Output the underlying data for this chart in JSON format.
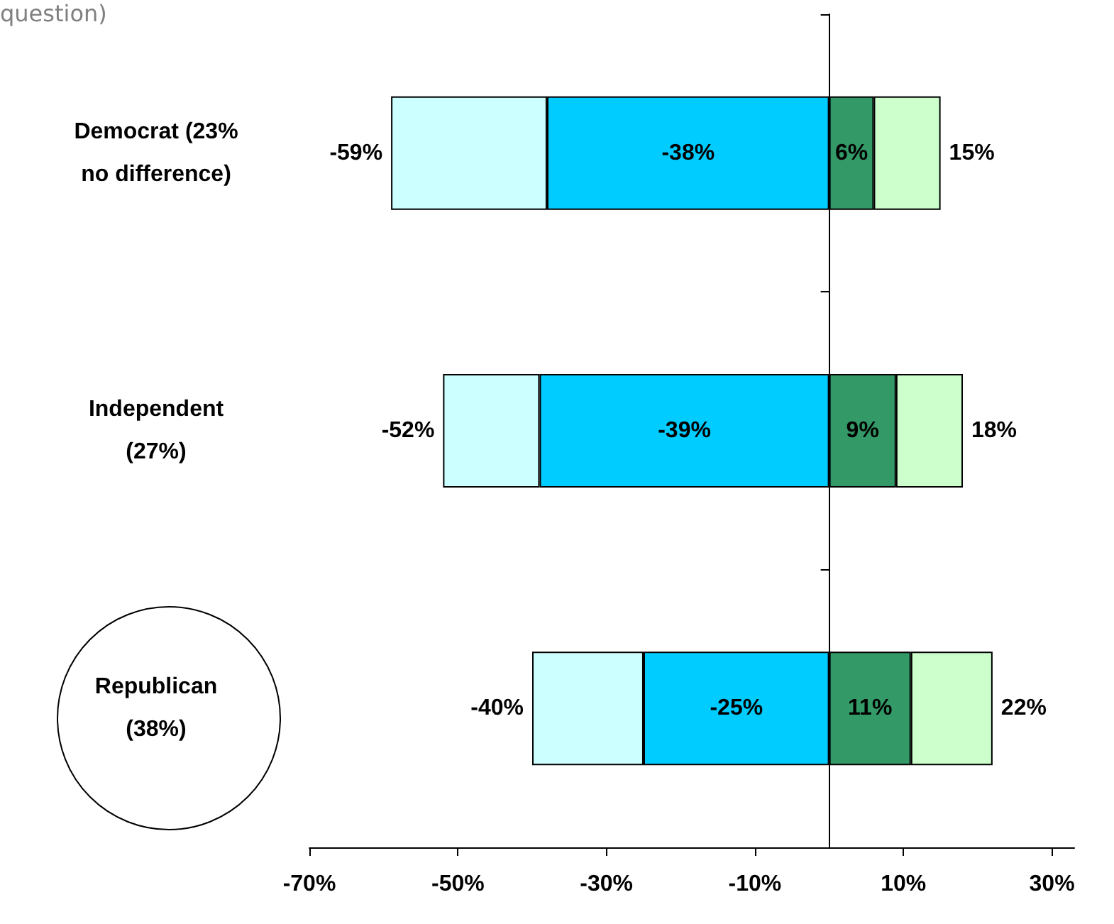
{
  "chart_data": {
    "type": "bar",
    "orientation": "horizontal",
    "stacked": true,
    "grid": false,
    "totals": [
      [
        "-59%",
        "15%"
      ],
      [
        "-52%",
        "18%"
      ],
      [
        "-40%",
        "22%"
      ]
    ],
    "annotations": [
      "question)"
    ],
    "categories": [
      "Democrat (23%\nno difference)",
      "Independent\n(27%)",
      "Republican\n(38%)"
    ],
    "xlim": [
      -70,
      33
    ],
    "xticks": [
      {
        "value": -70,
        "label": "-70%"
      },
      {
        "value": -50,
        "label": "-50%"
      },
      {
        "value": -30,
        "label": "-30%"
      },
      {
        "value": -10,
        "label": "-10%"
      },
      {
        "value": 10,
        "label": "10%"
      },
      {
        "value": 30,
        "label": "30%"
      }
    ],
    "series": [
      {
        "color": "#00ccff",
        "values": [
          -38,
          -39,
          -25
        ],
        "value_labels": [
          "-38%",
          "-39%",
          "-25%"
        ]
      },
      {
        "color": "#ccffff",
        "values": [
          -21,
          -13,
          -15
        ]
      },
      {
        "color": "#339966",
        "values": [
          6,
          9,
          11
        ],
        "value_labels": [
          "6%",
          "9%",
          "11%"
        ]
      },
      {
        "color": "#ccffcc",
        "values": [
          9,
          9,
          11
        ]
      }
    ]
  }
}
